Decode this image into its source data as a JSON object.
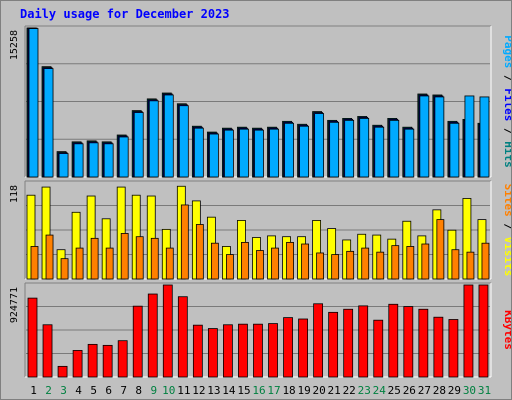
{
  "title": "Daily usage for December 2023",
  "colors": {
    "background": "#c0c0c0",
    "title": "#0000ff",
    "grid": "#7a7a7a",
    "pages": "#00aaff",
    "files": "#0000ff",
    "hits": "#008080",
    "visits": "#ffff00",
    "sites": "#ff8000",
    "kbytes": "#ff0000",
    "weekday": "#000000",
    "weekend": "#008040"
  },
  "chart_data": [
    {
      "type": "bar",
      "panel": "pages-files-hits",
      "categories": [
        "1",
        "2",
        "3",
        "4",
        "5",
        "6",
        "7",
        "8",
        "9",
        "10",
        "11",
        "12",
        "13",
        "14",
        "15",
        "16",
        "17",
        "18",
        "19",
        "20",
        "21",
        "22",
        "23",
        "24",
        "25",
        "26",
        "27",
        "28",
        "29",
        "30",
        "31"
      ],
      "weekend_days": [
        "2",
        "3",
        "9",
        "10",
        "16",
        "17",
        "23",
        "24",
        "30",
        "31"
      ],
      "max_label": "15258",
      "ylim": [
        0,
        15258
      ],
      "right_labels": [
        {
          "text": "Pages",
          "color_key": "pages"
        },
        {
          "text": " / ",
          "color_key": "weekday"
        },
        {
          "text": "Files",
          "color_key": "files"
        },
        {
          "text": " / ",
          "color_key": "weekday"
        },
        {
          "text": "Hits",
          "color_key": "hits"
        }
      ],
      "series": [
        {
          "name": "Hits",
          "color_key": "hits",
          "values": [
            15258,
            11300,
            2600,
            3600,
            3700,
            3600,
            4300,
            6800,
            8000,
            8600,
            7500,
            5200,
            4600,
            5000,
            5100,
            5000,
            5100,
            5700,
            5400,
            6700,
            5800,
            6000,
            6200,
            5300,
            6000,
            5100,
            8500,
            8400,
            5700,
            5900,
            5500
          ]
        },
        {
          "name": "Files",
          "color_key": "files",
          "values": [
            15250,
            11200,
            2500,
            3500,
            3600,
            3500,
            4200,
            6700,
            7900,
            8500,
            7400,
            5100,
            4500,
            4900,
            5000,
            4900,
            5000,
            5600,
            5300,
            6600,
            5700,
            5900,
            6100,
            5200,
            5900,
            5000,
            8400,
            8300,
            5600,
            5800,
            5400
          ]
        },
        {
          "name": "Pages",
          "color_key": "pages",
          "values": [
            15200,
            11100,
            2400,
            3400,
            3500,
            3400,
            4100,
            6600,
            7800,
            8400,
            7300,
            5000,
            4400,
            4800,
            4900,
            4800,
            4900,
            5500,
            5200,
            6500,
            5600,
            5800,
            6000,
            5100,
            5800,
            4900,
            8300,
            8200,
            5500,
            8300,
            8200
          ]
        }
      ]
    },
    {
      "type": "bar",
      "panel": "visits-sites",
      "categories": [
        "1",
        "2",
        "3",
        "4",
        "5",
        "6",
        "7",
        "8",
        "9",
        "10",
        "11",
        "12",
        "13",
        "14",
        "15",
        "16",
        "17",
        "18",
        "19",
        "20",
        "21",
        "22",
        "23",
        "24",
        "25",
        "26",
        "27",
        "28",
        "29",
        "30",
        "31"
      ],
      "max_label": "118",
      "ylim": [
        0,
        118
      ],
      "right_labels": [
        {
          "text": "Sites",
          "color_key": "sites"
        },
        {
          "text": " / ",
          "color_key": "weekday"
        },
        {
          "text": "Visits",
          "color_key": "visits"
        }
      ],
      "series": [
        {
          "name": "Visits",
          "color_key": "visits",
          "values": [
            103,
            113,
            36,
            82,
            102,
            74,
            113,
            103,
            102,
            61,
            114,
            96,
            76,
            40,
            72,
            51,
            53,
            52,
            52,
            72,
            62,
            48,
            55,
            54,
            49,
            71,
            53,
            85,
            60,
            99,
            73
          ]
        },
        {
          "name": "Sites",
          "color_key": "sites",
          "values": [
            40,
            54,
            25,
            38,
            50,
            38,
            56,
            52,
            50,
            38,
            91,
            67,
            44,
            30,
            45,
            35,
            38,
            45,
            43,
            32,
            30,
            34,
            38,
            33,
            41,
            40,
            43,
            73,
            36,
            33,
            44
          ]
        }
      ]
    },
    {
      "type": "bar",
      "panel": "kbytes",
      "categories": [
        "1",
        "2",
        "3",
        "4",
        "5",
        "6",
        "7",
        "8",
        "9",
        "10",
        "11",
        "12",
        "13",
        "14",
        "15",
        "16",
        "17",
        "18",
        "19",
        "20",
        "21",
        "22",
        "23",
        "24",
        "25",
        "26",
        "27",
        "28",
        "29",
        "30",
        "31"
      ],
      "max_label": "924771",
      "ylim": [
        0,
        924771
      ],
      "right_labels": [
        {
          "text": "KBytes",
          "color_key": "kbytes"
        }
      ],
      "series": [
        {
          "name": "KBytes",
          "color_key": "kbytes",
          "values": [
            793000,
            525000,
            107000,
            267000,
            328000,
            318000,
            365000,
            712000,
            834000,
            924771,
            807000,
            521000,
            487000,
            525000,
            531000,
            531000,
            537000,
            597000,
            583000,
            736000,
            650000,
            681000,
            715000,
            571000,
            731000,
            708000,
            681000,
            601000,
            578000,
            924771,
            924771
          ]
        }
      ]
    }
  ]
}
